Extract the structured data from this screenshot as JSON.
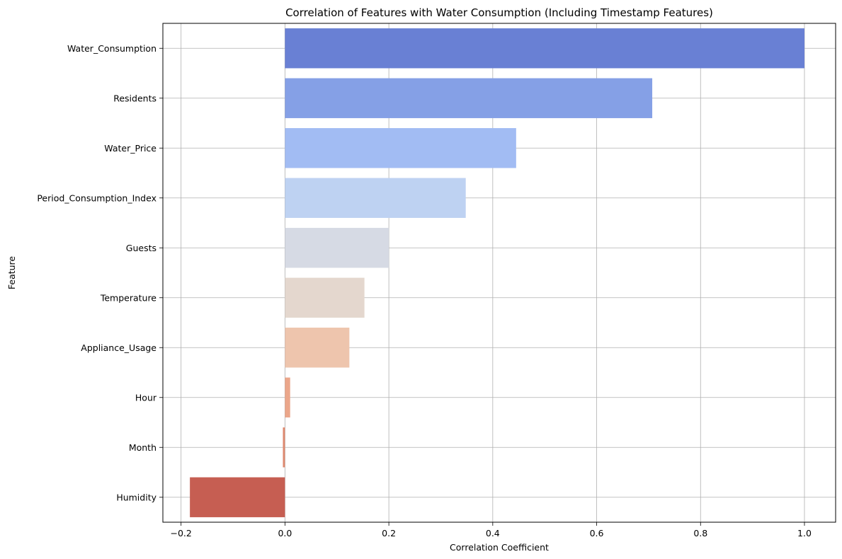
{
  "chart_data": {
    "type": "bar",
    "orientation": "horizontal",
    "title": "Correlation of Features with Water Consumption (Including Timestamp Features)",
    "xlabel": "Correlation Coefficient",
    "ylabel": "Feature",
    "categories": [
      "Water_Consumption",
      "Residents",
      "Water_Price",
      "Period_Consumption_Index",
      "Guests",
      "Temperature",
      "Appliance_Usage",
      "Hour",
      "Month",
      "Humidity"
    ],
    "values": [
      1.0,
      0.707,
      0.445,
      0.348,
      0.2,
      0.153,
      0.124,
      0.01,
      -0.004,
      -0.183
    ],
    "colors": [
      "#6980d4",
      "#85a0e6",
      "#a2bcf3",
      "#bed2f2",
      "#d6dae4",
      "#e4d7ce",
      "#eec5ad",
      "#eba68a",
      "#df8a70",
      "#c65e52"
    ],
    "xlim": [
      -0.235,
      1.06
    ],
    "xticks": [
      -0.2,
      0.0,
      0.2,
      0.4,
      0.6,
      0.8,
      1.0
    ],
    "xtick_labels": [
      "−0.2",
      "0.0",
      "0.2",
      "0.4",
      "0.6",
      "0.8",
      "1.0"
    ],
    "grid": true
  }
}
